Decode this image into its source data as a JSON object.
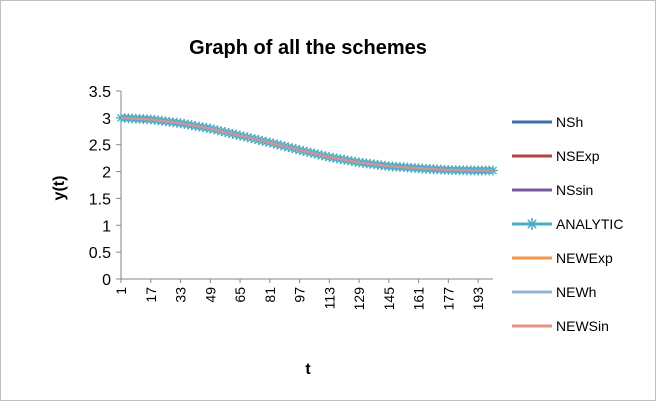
{
  "chart_data": {
    "type": "line",
    "title": "Graph of all the schemes",
    "xlabel": "t",
    "ylabel": "y(t)",
    "ylim": [
      0,
      3.5
    ],
    "yticks": [
      "0",
      "0.5",
      "1",
      "1.5",
      "2",
      "2.5",
      "3",
      "3.5"
    ],
    "xticks": [
      "1",
      "17",
      "33",
      "49",
      "65",
      "81",
      "97",
      "113",
      "129",
      "145",
      "161",
      "177",
      "193"
    ],
    "x": [
      1,
      17,
      33,
      49,
      65,
      81,
      97,
      113,
      129,
      145,
      161,
      177,
      193,
      201
    ],
    "grid": false,
    "legend_position": "right",
    "series": [
      {
        "name": "NSh",
        "color": "#3F6FA8",
        "marker": "none",
        "values": [
          3.0,
          2.97,
          2.9,
          2.8,
          2.67,
          2.54,
          2.4,
          2.27,
          2.17,
          2.1,
          2.06,
          2.03,
          2.02,
          2.02
        ]
      },
      {
        "name": "NSExp",
        "color": "#B5403C",
        "marker": "none",
        "values": [
          3.0,
          2.97,
          2.9,
          2.8,
          2.67,
          2.54,
          2.4,
          2.27,
          2.17,
          2.1,
          2.06,
          2.03,
          2.02,
          2.02
        ]
      },
      {
        "name": "NSsin",
        "color": "#7A5A9E",
        "marker": "none",
        "values": [
          3.0,
          2.97,
          2.9,
          2.8,
          2.67,
          2.54,
          2.4,
          2.27,
          2.17,
          2.1,
          2.06,
          2.03,
          2.02,
          2.02
        ]
      },
      {
        "name": "ANALYTIC",
        "color": "#4BACC6",
        "marker": "asterisk",
        "values": [
          3.0,
          2.97,
          2.9,
          2.8,
          2.67,
          2.54,
          2.4,
          2.27,
          2.17,
          2.1,
          2.06,
          2.03,
          2.02,
          2.02
        ]
      },
      {
        "name": "NEWExp",
        "color": "#F79646",
        "marker": "none",
        "values": [
          3.0,
          2.97,
          2.9,
          2.8,
          2.67,
          2.54,
          2.4,
          2.27,
          2.17,
          2.1,
          2.06,
          2.03,
          2.02,
          2.02
        ]
      },
      {
        "name": "NEWh",
        "color": "#95B3D7",
        "marker": "none",
        "values": [
          3.0,
          2.97,
          2.9,
          2.8,
          2.67,
          2.54,
          2.4,
          2.27,
          2.17,
          2.1,
          2.06,
          2.03,
          2.02,
          2.02
        ]
      },
      {
        "name": "NEWSin",
        "color": "#E6908C",
        "marker": "none",
        "values": [
          3.0,
          2.97,
          2.9,
          2.8,
          2.67,
          2.54,
          2.4,
          2.27,
          2.17,
          2.1,
          2.06,
          2.03,
          2.02,
          2.02
        ]
      }
    ]
  }
}
